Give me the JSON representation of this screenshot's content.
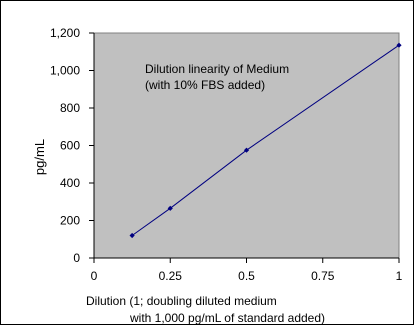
{
  "chart_data": {
    "type": "line",
    "title": "",
    "annotation": [
      "Dilution linearity of Medium",
      "(with 10% FBS added)"
    ],
    "xlabel": [
      "Dilution (1; doubling diluted medium",
      "with 1,000 pg/mL of standard added)"
    ],
    "ylabel": "pg/mL",
    "xlim": [
      0,
      1
    ],
    "ylim": [
      0,
      1200
    ],
    "x_ticks": [
      0,
      0.25,
      0.5,
      0.75,
      1
    ],
    "x_tick_labels": [
      "0",
      "0.25",
      "0.5",
      "0.75",
      "1"
    ],
    "y_ticks": [
      0,
      200,
      400,
      600,
      800,
      1000,
      1200
    ],
    "y_tick_labels": [
      "0",
      "200",
      "400",
      "600",
      "800",
      "1,000",
      "1,200"
    ],
    "grid": false,
    "plot_background": "#c0c0c0",
    "series": [
      {
        "color": "#000080",
        "x": [
          0.125,
          0.25,
          0.5,
          1
        ],
        "y": [
          120,
          265,
          575,
          1135
        ]
      }
    ]
  }
}
